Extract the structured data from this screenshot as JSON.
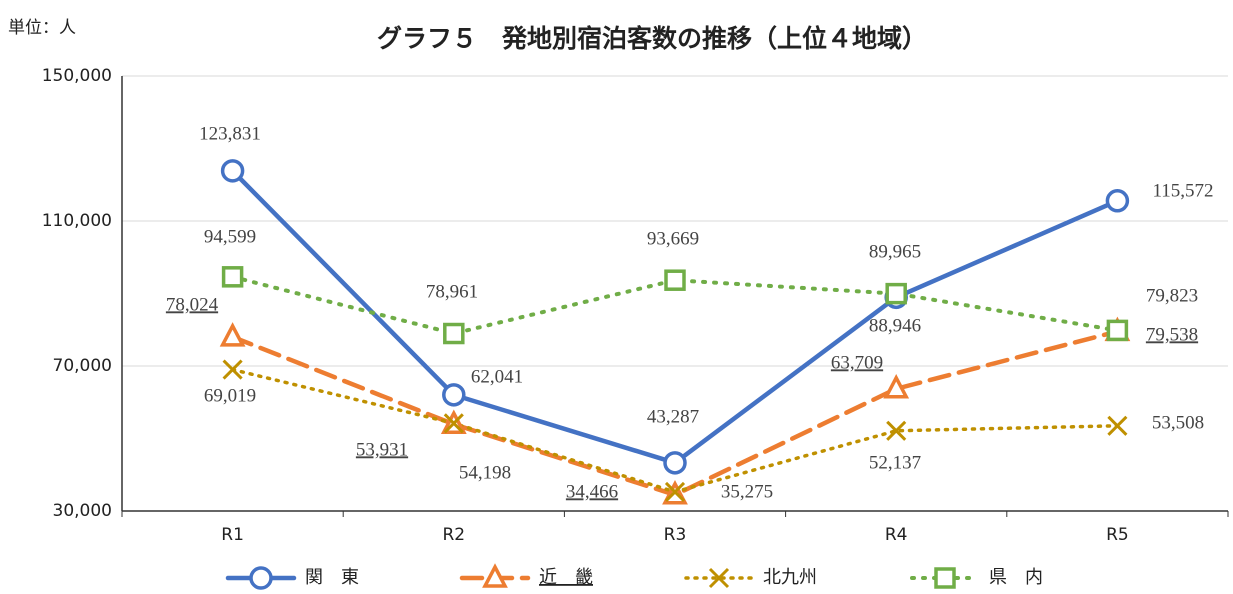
{
  "chart_data": {
    "type": "line",
    "title": "グラフ５　発地別宿泊客数の推移（上位４地域）",
    "unit_label": "単位：人",
    "categories": [
      "R1",
      "R2",
      "R3",
      "R4",
      "R5"
    ],
    "series": [
      {
        "name": "関　東",
        "color": "#4472c4",
        "values": [
          123831,
          62041,
          43287,
          88946,
          115572
        ],
        "value_labels": [
          "123,831",
          "62,041",
          "43,287",
          "88,946",
          "115,572"
        ]
      },
      {
        "name": "近　畿",
        "color": "#ed7d31",
        "values": [
          78024,
          53931,
          34466,
          63709,
          79538
        ],
        "value_labels": [
          "78,024",
          "53,931",
          "34,466",
          "63,709",
          "79,538"
        ]
      },
      {
        "name": "北九州",
        "color": "#bf9000",
        "values": [
          69019,
          54198,
          35275,
          52137,
          53508
        ],
        "value_labels": [
          "69,019",
          "54,198",
          "35,275",
          "52,137",
          "53,508"
        ]
      },
      {
        "name": "県　内",
        "color": "#70ad47",
        "values": [
          94599,
          78961,
          93669,
          89965,
          79823
        ],
        "value_labels": [
          "94,599",
          "78,961",
          "93,669",
          "89,965",
          "79,823"
        ]
      }
    ],
    "ylim": [
      30000,
      150000
    ],
    "yticks": [
      {
        "value": 30000,
        "label": "30,000"
      },
      {
        "value": 70000,
        "label": "70,000"
      },
      {
        "value": 110000,
        "label": "110,000"
      },
      {
        "value": 150000,
        "label": "150,000"
      }
    ],
    "grid": true
  }
}
